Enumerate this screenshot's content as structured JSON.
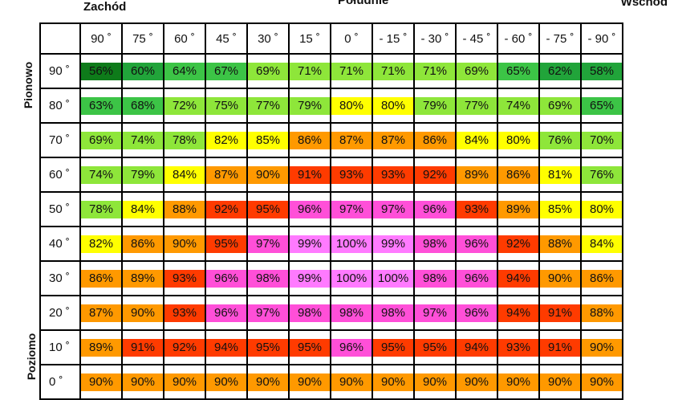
{
  "chart_data": {
    "type": "heatmap",
    "top_labels": {
      "west": "Zachód",
      "south": "Południe",
      "east": "Wschód"
    },
    "row_axis_labels": {
      "top": "Pionowo",
      "bottom": "Poziomo"
    },
    "columns": [
      "90 ˚",
      "75 ˚",
      "60 ˚",
      "45 ˚",
      "30 ˚",
      "15 ˚",
      "0 ˚",
      "- 15 ˚",
      "- 30 ˚",
      "- 45 ˚",
      "- 60 ˚",
      "- 75 ˚",
      "- 90 ˚"
    ],
    "rows": [
      "90 ˚",
      "80 ˚",
      "70 ˚",
      "60 ˚",
      "50 ˚",
      "40 ˚",
      "30 ˚",
      "20 ˚",
      "10 ˚",
      "0 ˚"
    ],
    "values": [
      [
        56,
        60,
        64,
        67,
        69,
        71,
        71,
        71,
        71,
        69,
        65,
        62,
        58
      ],
      [
        63,
        68,
        72,
        75,
        77,
        79,
        80,
        80,
        79,
        77,
        74,
        69,
        65
      ],
      [
        69,
        74,
        78,
        82,
        85,
        86,
        87,
        87,
        86,
        84,
        80,
        76,
        70
      ],
      [
        74,
        79,
        84,
        87,
        90,
        91,
        93,
        93,
        92,
        89,
        86,
        81,
        76
      ],
      [
        78,
        84,
        88,
        92,
        95,
        96,
        97,
        97,
        96,
        93,
        89,
        85,
        80
      ],
      [
        82,
        86,
        90,
        95,
        97,
        99,
        100,
        99,
        98,
        96,
        92,
        88,
        84
      ],
      [
        86,
        89,
        93,
        96,
        98,
        99,
        100,
        100,
        98,
        96,
        94,
        90,
        86
      ],
      [
        87,
        90,
        93,
        96,
        97,
        98,
        98,
        98,
        97,
        96,
        94,
        91,
        88
      ],
      [
        89,
        91,
        92,
        94,
        95,
        95,
        96,
        95,
        95,
        94,
        93,
        91,
        90
      ],
      [
        90,
        90,
        90,
        90,
        90,
        90,
        90,
        90,
        90,
        90,
        90,
        90,
        90
      ]
    ],
    "value_suffix": "%",
    "colors": {
      "c56": "#0e7b1a",
      "c60_62": "#21a43a",
      "c63_68": "#3cc446",
      "c69_79": "#8ee63a",
      "c80_85": "#ffff00",
      "c86_90": "#ff9900",
      "c91_95": "#ff3b00",
      "c96_100": "#ff4fd8",
      "c99_100": "#ff7aff"
    }
  }
}
